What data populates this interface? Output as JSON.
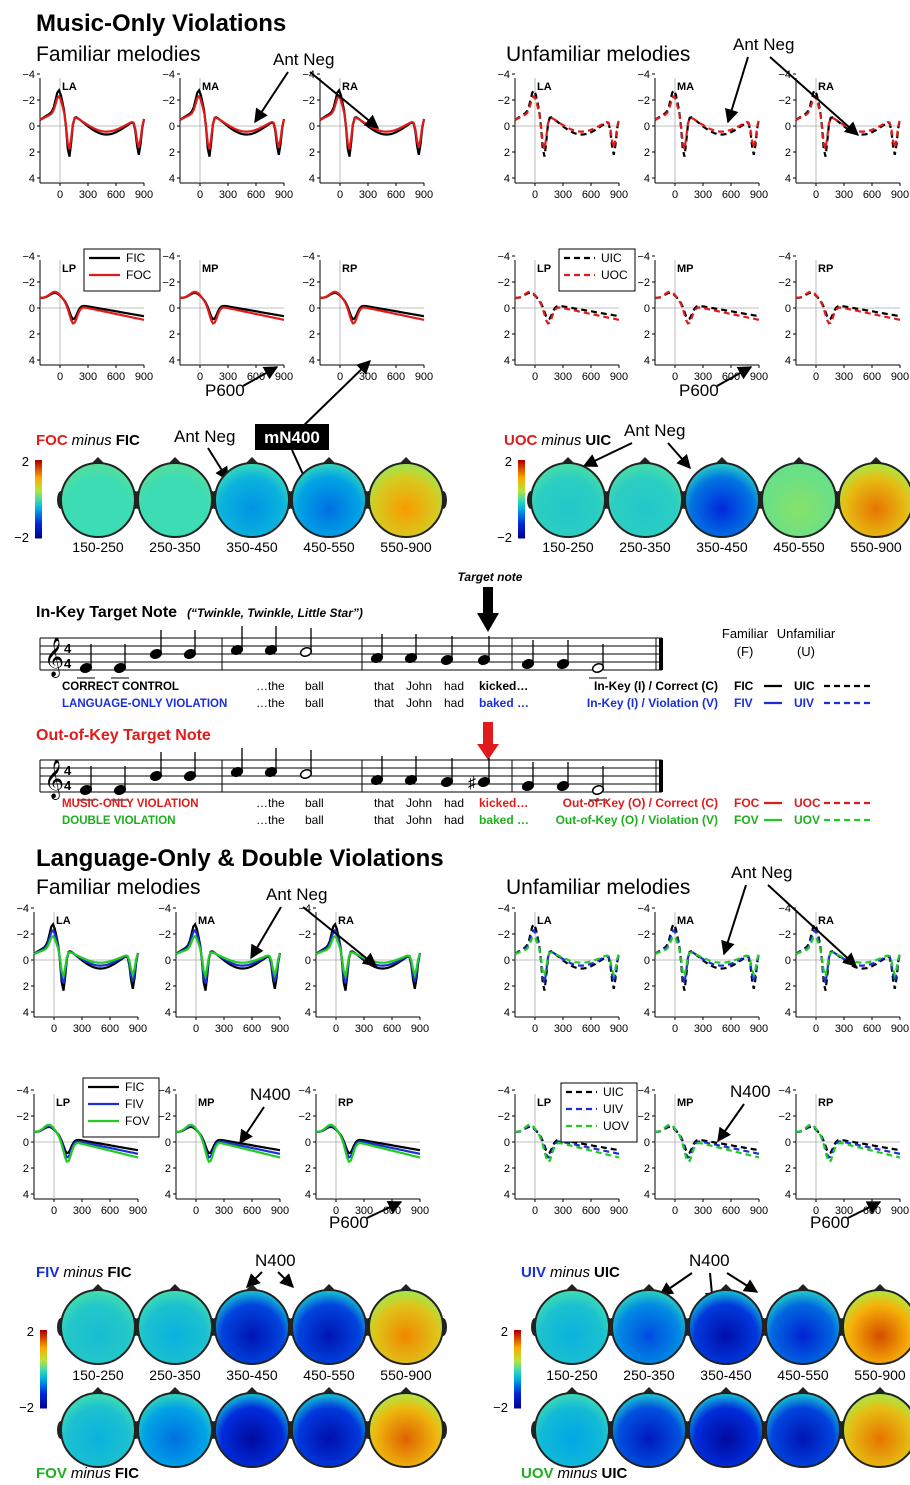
{
  "sections": {
    "music_title": "Music-Only Violations",
    "lang_title": "Language-Only & Double Violations"
  },
  "panel_titles": {
    "familiar": "Familiar melodies",
    "unfamiliar": "Unfamiliar melodies"
  },
  "electrodes": [
    "LA",
    "MA",
    "RA",
    "LP",
    "MP",
    "RP"
  ],
  "axes": {
    "y_ticks": [
      "−4",
      "−2",
      "0",
      "2",
      "4"
    ],
    "x_ticks": [
      "0",
      "300",
      "600",
      "900"
    ]
  },
  "annotations": {
    "ant_neg": "Ant Neg",
    "p600": "P600",
    "mn400": "mN400",
    "n400": "N400"
  },
  "legends": {
    "music_familiar": [
      "FIC",
      "FOC"
    ],
    "music_unfamiliar": [
      "UIC",
      "UOC"
    ],
    "lang_familiar": [
      "FIC",
      "FIV",
      "FOV"
    ],
    "lang_unfamiliar": [
      "UIC",
      "UIV",
      "UOV"
    ]
  },
  "colors": {
    "control": "#000000",
    "music_violation": "#e01b1b",
    "language_violation": "#1a2fd6",
    "double_violation": "#22cc22",
    "title_red": "#e01b1b",
    "title_blue": "#1a2fd6",
    "title_green": "#1fae1f"
  },
  "topo": {
    "windows": [
      "150-250",
      "250-350",
      "350-450",
      "450-550",
      "550-900"
    ],
    "scale_max": "2",
    "scale_min": "−2",
    "music_left_title": {
      "a": "FOC",
      "b": "minus",
      "c": "FIC"
    },
    "music_right_title": {
      "a": "UOC",
      "b": "minus",
      "c": "UIC"
    },
    "lang_left_title": {
      "a": "FIV",
      "b": "minus",
      "c": "FIC"
    },
    "lang_right_title": {
      "a": "UIV",
      "b": "minus",
      "c": "UIC"
    },
    "lang_left_title2": {
      "a": "FOV",
      "b": "minus",
      "c": "FIC"
    },
    "lang_right_title2": {
      "a": "UOV",
      "b": "minus",
      "c": "UIC"
    },
    "levels": {
      "foc_fic": [
        0.0,
        0.0,
        -0.6,
        -0.8,
        1.2
      ],
      "uoc_uic": [
        -0.2,
        -0.2,
        -1.2,
        0.3,
        1.4
      ],
      "fiv_fic": [
        -0.3,
        -0.4,
        -1.6,
        -1.6,
        1.3
      ],
      "uiv_uic": [
        -0.4,
        -1.0,
        -1.7,
        -1.3,
        1.6
      ],
      "fov_fic": [
        -0.4,
        -0.8,
        -1.8,
        -1.7,
        1.5
      ],
      "uov_uic": [
        -0.5,
        -1.5,
        -1.8,
        -1.6,
        1.4
      ]
    }
  },
  "stimuli": {
    "in_key_title": "In-Key Target Note",
    "in_key_subtitle": "(“Twinkle, Twinkle, Little Star”)",
    "out_key_title": "Out-of-Key Target Note",
    "target_note": "Target note",
    "rows_in": [
      {
        "label": "CORRECT CONTROL",
        "words": [
          "…the",
          "ball",
          "that",
          "John",
          "had",
          "kicked…"
        ],
        "cond": "In-Key (I) / Correct (C)"
      },
      {
        "label": "LANGUAGE-ONLY VIOLATION",
        "words": [
          "…the",
          "ball",
          "that",
          "John",
          "had",
          "baked …"
        ],
        "cond": "In-Key (I) / Violation (V)"
      }
    ],
    "rows_out": [
      {
        "label": "MUSIC-ONLY VIOLATION",
        "words": [
          "…the",
          "ball",
          "that",
          "John",
          "had",
          "kicked…"
        ],
        "cond": "Out-of-Key (O) / Correct  (C)"
      },
      {
        "label": "DOUBLE VIOLATION",
        "words": [
          "…the",
          "ball",
          "that",
          "John",
          "had",
          "baked …"
        ],
        "cond": "Out-of-Key (O) / Violation (V)"
      }
    ],
    "familiar_header": "Familiar",
    "familiar_abbrev": "(F)",
    "unfamiliar_header": "Unfamiliar",
    "unfamiliar_abbrev": "(U)",
    "codes": [
      [
        "FIC",
        "UIC"
      ],
      [
        "FIV",
        "UIV"
      ],
      [
        "FOC",
        "UOC"
      ],
      [
        "FOV",
        "UOV"
      ]
    ]
  }
}
